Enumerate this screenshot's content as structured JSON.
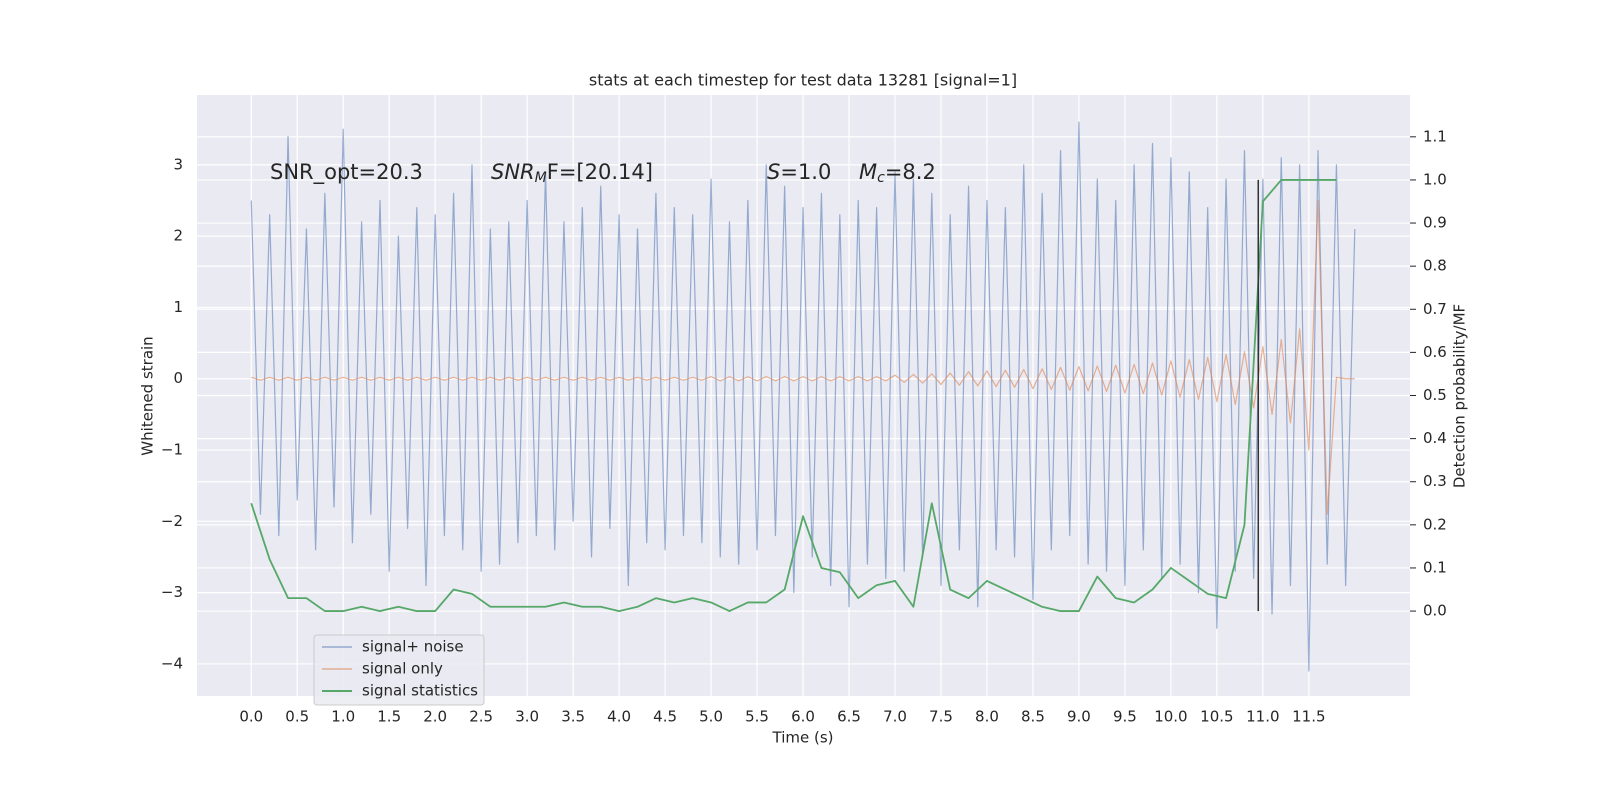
{
  "chart_data": {
    "type": "line",
    "title": "stats at each timestep for test data 13281 [signal=1]",
    "xlabel": "Time (s)",
    "ylabel": "Whitened strain",
    "y2label": "Detection probability/MF",
    "x": [
      0,
      0.1,
      0.2,
      0.3,
      0.4,
      0.5,
      0.6,
      0.7,
      0.8,
      0.9,
      1,
      1.1,
      1.2,
      1.3,
      1.4,
      1.5,
      1.6,
      1.7,
      1.8,
      1.9,
      2,
      2.1,
      2.2,
      2.3,
      2.4,
      2.5,
      2.6,
      2.7,
      2.8,
      2.9,
      3,
      3.1,
      3.2,
      3.3,
      3.4,
      3.5,
      3.6,
      3.7,
      3.8,
      3.9,
      4,
      4.1,
      4.2,
      4.3,
      4.4,
      4.5,
      4.6,
      4.7,
      4.8,
      4.9,
      5,
      5.1,
      5.2,
      5.3,
      5.4,
      5.5,
      5.6,
      5.7,
      5.8,
      5.9,
      6,
      6.1,
      6.2,
      6.3,
      6.4,
      6.5,
      6.6,
      6.7,
      6.8,
      6.9,
      7,
      7.1,
      7.2,
      7.3,
      7.4,
      7.5,
      7.6,
      7.7,
      7.8,
      7.9,
      8,
      8.1,
      8.2,
      8.3,
      8.4,
      8.5,
      8.6,
      8.7,
      8.8,
      8.9,
      9,
      9.1,
      9.2,
      9.3,
      9.4,
      9.5,
      9.6,
      9.7,
      9.8,
      9.9,
      10,
      10.1,
      10.2,
      10.3,
      10.4,
      10.5,
      10.6,
      10.7,
      10.8,
      10.9,
      11,
      11.1,
      11.2,
      11.3,
      11.4,
      11.5,
      11.6,
      11.7,
      11.8,
      11.9,
      12
    ],
    "series": [
      {
        "name": "signal+ noise",
        "color": "#4c72b0",
        "values": [
          2.5,
          -1.9,
          2.3,
          -2.2,
          3.4,
          -1.7,
          2.1,
          -2.4,
          2.6,
          -1.8,
          3.5,
          -2.3,
          2.2,
          -1.9,
          2.5,
          -2.7,
          2.0,
          -2.1,
          2.4,
          -2.9,
          2.3,
          -2.2,
          2.6,
          -2.4,
          3.0,
          -2.7,
          2.1,
          -2.6,
          2.2,
          -2.3,
          2.5,
          -2.2,
          2.9,
          -2.4,
          2.2,
          -2.0,
          2.4,
          -2.5,
          2.7,
          -2.1,
          2.3,
          -2.9,
          2.1,
          -2.3,
          2.6,
          -2.4,
          2.4,
          -2.2,
          2.3,
          -2.3,
          2.8,
          -2.5,
          2.2,
          -2.6,
          2.5,
          -2.4,
          3.0,
          -2.2,
          2.7,
          -3.0,
          2.4,
          -2.5,
          2.6,
          -2.9,
          2.3,
          -3.2,
          2.5,
          -2.6,
          2.4,
          -2.8,
          2.9,
          -2.7,
          2.8,
          -2.5,
          2.6,
          -2.9,
          2.3,
          -2.4,
          2.7,
          -3.2,
          2.5,
          -2.4,
          2.4,
          -2.5,
          3.0,
          -3.1,
          2.6,
          -2.4,
          3.2,
          -2.2,
          3.6,
          -2.6,
          2.8,
          -2.7,
          2.5,
          -2.9,
          3.0,
          -2.4,
          3.3,
          -2.8,
          3.1,
          -2.6,
          2.9,
          -3.0,
          2.4,
          -3.5,
          2.8,
          -2.7,
          3.2,
          -2.8,
          2.8,
          -3.3,
          3.1,
          -2.9,
          3.0,
          -4.1,
          3.2,
          -2.6,
          3.0,
          -2.9,
          2.1
        ]
      },
      {
        "name": "signal only",
        "color": "#dd8452",
        "values": [
          0.02,
          -0.02,
          0.02,
          -0.02,
          0.02,
          -0.02,
          0.02,
          -0.02,
          0.02,
          -0.02,
          0.02,
          -0.02,
          0.02,
          -0.02,
          0.02,
          -0.02,
          0.02,
          -0.02,
          0.02,
          -0.02,
          0.02,
          -0.02,
          0.02,
          -0.02,
          0.02,
          -0.02,
          0.02,
          -0.02,
          0.02,
          -0.02,
          0.02,
          -0.02,
          0.02,
          -0.02,
          0.02,
          -0.02,
          0.02,
          -0.02,
          0.02,
          -0.02,
          0.02,
          -0.02,
          0.02,
          -0.02,
          0.02,
          -0.02,
          0.02,
          -0.02,
          0.02,
          -0.02,
          0.03,
          -0.03,
          0.03,
          -0.03,
          0.03,
          -0.03,
          0.03,
          -0.03,
          0.03,
          -0.03,
          0.03,
          -0.03,
          0.03,
          -0.03,
          0.03,
          -0.03,
          0.03,
          -0.03,
          0.03,
          -0.03,
          0.05,
          -0.05,
          0.06,
          -0.06,
          0.07,
          -0.08,
          0.08,
          -0.09,
          0.1,
          -0.1,
          0.11,
          -0.11,
          0.12,
          -0.12,
          0.13,
          -0.14,
          0.14,
          -0.15,
          0.16,
          -0.16,
          0.17,
          -0.17,
          0.18,
          -0.18,
          0.19,
          -0.2,
          0.2,
          -0.21,
          0.22,
          -0.23,
          0.25,
          -0.26,
          0.27,
          -0.29,
          0.3,
          -0.32,
          0.34,
          -0.36,
          0.38,
          -0.41,
          0.45,
          -0.5,
          0.55,
          -0.62,
          0.7,
          -1.0,
          2.5,
          -1.9,
          0.02,
          0,
          0
        ]
      },
      {
        "name": "signal statistics",
        "color": "#55a868",
        "axis": "y2",
        "x": [
          0,
          0.2,
          0.4,
          0.6,
          0.8,
          1,
          1.2,
          1.4,
          1.6,
          1.8,
          2,
          2.2,
          2.4,
          2.6,
          2.8,
          3,
          3.2,
          3.4,
          3.6,
          3.8,
          4,
          4.2,
          4.4,
          4.6,
          4.8,
          5,
          5.2,
          5.4,
          5.6,
          5.8,
          6,
          6.2,
          6.4,
          6.6,
          6.8,
          7,
          7.2,
          7.4,
          7.6,
          7.8,
          8,
          8.2,
          8.4,
          8.6,
          8.8,
          9,
          9.2,
          9.4,
          9.6,
          9.8,
          10,
          10.2,
          10.4,
          10.6,
          10.8,
          11,
          11.2,
          11.4,
          11.6,
          11.8
        ],
        "values": [
          0.25,
          0.12,
          0.03,
          0.03,
          0.0,
          0.0,
          0.01,
          0.0,
          0.01,
          0.0,
          0.0,
          0.05,
          0.04,
          0.01,
          0.01,
          0.01,
          0.01,
          0.02,
          0.01,
          0.01,
          0.0,
          0.01,
          0.03,
          0.02,
          0.03,
          0.02,
          0.0,
          0.02,
          0.02,
          0.05,
          0.22,
          0.1,
          0.09,
          0.03,
          0.06,
          0.07,
          0.01,
          0.25,
          0.05,
          0.03,
          0.07,
          0.05,
          0.03,
          0.01,
          0.0,
          0.0,
          0.08,
          0.03,
          0.02,
          0.05,
          0.1,
          0.07,
          0.04,
          0.03,
          0.2,
          0.95,
          1.0,
          1.0,
          1.0,
          1.0
        ]
      }
    ],
    "xlim": [
      -0.59,
      12.6
    ],
    "xticks": [
      {
        "value": 0,
        "label": "0.0"
      },
      0.5,
      {
        "value": 1,
        "label": "1.0"
      },
      1.5,
      {
        "value": 2,
        "label": "2.0"
      },
      2.5,
      {
        "value": 3,
        "label": "3.0"
      },
      3.5,
      {
        "value": 4,
        "label": "4.0"
      },
      4.5,
      {
        "value": 5,
        "label": "5.0"
      },
      5.5,
      {
        "value": 6,
        "label": "6.0"
      },
      6.5,
      {
        "value": 7,
        "label": "7.0"
      },
      7.5,
      {
        "value": 8,
        "label": "8.0"
      },
      8.5,
      {
        "value": 9,
        "label": "9.0"
      },
      9.5,
      {
        "value": 10,
        "label": "10.0"
      },
      10.5,
      {
        "value": 11,
        "label": "11.0"
      },
      11.5
    ],
    "ylim": [
      -4.45,
      3.98
    ],
    "yticks": [
      {
        "value": -4,
        "label": "−4"
      },
      {
        "value": -3,
        "label": "−3"
      },
      {
        "value": -2,
        "label": "−2"
      },
      {
        "value": -1,
        "label": "−1"
      },
      0,
      1,
      2,
      3
    ],
    "y2lim": [
      -0.197,
      1.197
    ],
    "y2ticks": [
      {
        "value": 0,
        "label": "0.0"
      },
      0.1,
      0.2,
      0.3,
      0.4,
      0.5,
      0.6,
      0.7,
      0.8,
      0.9,
      {
        "value": 1,
        "label": "1.0"
      },
      1.1
    ],
    "grid": true,
    "legend": "lower left",
    "annotations": [
      [
        "SNR_opt=20.3"
      ],
      [
        "SNR",
        "M",
        "F=[20.14]"
      ],
      [
        "S",
        "=1.0"
      ],
      [
        "M",
        "c",
        "=8.2"
      ]
    ],
    "vline": {
      "x": 10.95,
      "y2": [
        0,
        1
      ],
      "color": "#333333"
    }
  }
}
